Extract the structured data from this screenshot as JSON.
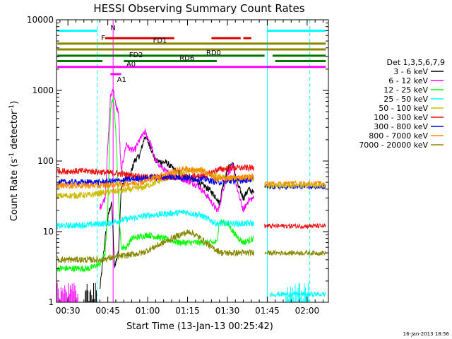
{
  "chart_data": {
    "type": "line",
    "title": "HESSI Observing Summary Count Rates",
    "xlabel": "Start Time (13-Jan-13 00:25:42)",
    "ylabel": "Count Rate (s",
    "ylabel_sup1": "-1",
    "ylabel_mid": " detector",
    "ylabel_sup2": "-1",
    "ylabel_end": ")",
    "y_scale": "log",
    "ylim": [
      1,
      10000
    ],
    "xlim_minutes": [
      25.7,
      128
    ],
    "x_ticks": [
      {
        "label": "00:30",
        "min": 30
      },
      {
        "label": "00:45",
        "min": 45
      },
      {
        "label": "01:00",
        "min": 60
      },
      {
        "label": "01:15",
        "min": 75
      },
      {
        "label": "01:30",
        "min": 90
      },
      {
        "label": "01:45",
        "min": 105
      },
      {
        "label": "02:00",
        "min": 120
      }
    ],
    "y_ticks": [
      {
        "label": "1",
        "v": 1
      },
      {
        "label": "10",
        "v": 10
      },
      {
        "label": "100",
        "v": 100
      },
      {
        "label": "1000",
        "v": 1000
      },
      {
        "label": "10000",
        "v": 10000
      }
    ],
    "legend_title": "Det 1,3,5,6,7,9",
    "legend_position": "right",
    "timestamp": "16-Jan-2013 18:56",
    "series": [
      {
        "name": "3 - 6 keV",
        "color": "#000000",
        "points": [
          [
            42,
            1.5
          ],
          [
            44,
            8
          ],
          [
            45.5,
            20
          ],
          [
            46.5,
            25
          ],
          [
            47.5,
            3.2
          ],
          [
            49,
            5
          ],
          [
            50,
            40
          ],
          [
            52,
            60
          ],
          [
            53,
            55
          ],
          [
            55,
            100
          ],
          [
            57,
            120
          ],
          [
            59,
            230
          ],
          [
            61,
            160
          ],
          [
            63,
            100
          ],
          [
            67,
            95
          ],
          [
            71,
            70
          ],
          [
            75,
            60
          ],
          [
            79,
            50
          ],
          [
            83,
            40
          ],
          [
            86,
            30
          ],
          [
            87,
            25
          ],
          [
            88,
            40
          ],
          [
            90,
            75
          ],
          [
            92,
            95
          ],
          [
            94,
            45
          ],
          [
            96,
            30
          ],
          [
            98,
            40
          ],
          [
            100,
            35
          ]
        ]
      },
      {
        "name": "6 - 12 keV",
        "color": "#ff00ff",
        "points": [
          [
            42,
            22
          ],
          [
            44,
            30
          ],
          [
            46,
            800
          ],
          [
            47,
            1100
          ],
          [
            48,
            600
          ],
          [
            49,
            500
          ],
          [
            50,
            70
          ],
          [
            52,
            180
          ],
          [
            53,
            150
          ],
          [
            55,
            140
          ],
          [
            57,
            200
          ],
          [
            59,
            260
          ],
          [
            61,
            180
          ],
          [
            63,
            100
          ],
          [
            67,
            70
          ],
          [
            71,
            60
          ],
          [
            75,
            52
          ],
          [
            79,
            45
          ],
          [
            83,
            30
          ],
          [
            86,
            20
          ],
          [
            87,
            22
          ],
          [
            88,
            35
          ],
          [
            90,
            65
          ],
          [
            92,
            85
          ],
          [
            94,
            35
          ],
          [
            96,
            20
          ],
          [
            98,
            28
          ],
          [
            100,
            30
          ]
        ]
      },
      {
        "name": "12 - 25 keV",
        "color": "#00ff00",
        "points": [
          [
            26,
            3
          ],
          [
            38,
            3
          ],
          [
            42,
            3.5
          ],
          [
            44,
            5
          ],
          [
            45,
            20
          ],
          [
            46,
            550
          ],
          [
            47,
            800
          ],
          [
            48,
            300
          ],
          [
            49,
            30
          ],
          [
            50,
            6
          ],
          [
            52,
            6
          ],
          [
            54,
            8
          ],
          [
            60,
            9
          ],
          [
            66,
            8
          ],
          [
            72,
            7
          ],
          [
            78,
            7
          ],
          [
            83,
            7
          ],
          [
            86,
            7
          ],
          [
            87,
            14
          ],
          [
            90,
            13
          ],
          [
            93,
            9
          ],
          [
            96,
            7
          ],
          [
            100,
            8
          ]
        ]
      },
      {
        "name": "25 - 50 keV",
        "color": "#00ffff",
        "points": [
          [
            26,
            12
          ],
          [
            38,
            12.5
          ],
          [
            42,
            13
          ],
          [
            45,
            13
          ],
          [
            48,
            14
          ],
          [
            52,
            15
          ],
          [
            60,
            17
          ],
          [
            68,
            18
          ],
          [
            74,
            19
          ],
          [
            80,
            17
          ],
          [
            86,
            13
          ],
          [
            92,
            13
          ],
          [
            100,
            13
          ]
        ]
      },
      {
        "name": "50 - 100 keV",
        "color": "#ccbb00",
        "points": [
          [
            26,
            32
          ],
          [
            38,
            33
          ],
          [
            42,
            35
          ],
          [
            50,
            38
          ],
          [
            58,
            42
          ],
          [
            66,
            55
          ],
          [
            74,
            70
          ],
          [
            80,
            75
          ],
          [
            86,
            60
          ],
          [
            92,
            55
          ],
          [
            100,
            55
          ]
        ]
      },
      {
        "name": "100 - 300 keV",
        "color": "#ee1111",
        "points": [
          [
            26,
            72
          ],
          [
            38,
            72
          ],
          [
            42,
            70
          ],
          [
            50,
            66
          ],
          [
            58,
            60
          ],
          [
            66,
            58
          ],
          [
            74,
            60
          ],
          [
            82,
            62
          ],
          [
            86,
            75
          ],
          [
            92,
            80
          ],
          [
            100,
            80
          ]
        ]
      },
      {
        "name": "300 - 800 keV",
        "color": "#0000ee",
        "points": [
          [
            26,
            50
          ],
          [
            38,
            50
          ],
          [
            42,
            50
          ],
          [
            50,
            53
          ],
          [
            58,
            57
          ],
          [
            66,
            60
          ],
          [
            74,
            58
          ],
          [
            82,
            55
          ],
          [
            86,
            50
          ],
          [
            92,
            52
          ],
          [
            100,
            55
          ]
        ]
      },
      {
        "name": "800 - 7000 keV",
        "color": "#ff8800",
        "points": [
          [
            26,
            45
          ],
          [
            38,
            45
          ],
          [
            42,
            45
          ],
          [
            50,
            47
          ],
          [
            58,
            50
          ],
          [
            66,
            65
          ],
          [
            74,
            78
          ],
          [
            82,
            70
          ],
          [
            86,
            55
          ],
          [
            92,
            58
          ],
          [
            100,
            60
          ]
        ]
      },
      {
        "name": "7000 - 20000 keV",
        "color": "#888800",
        "points": [
          [
            26,
            4
          ],
          [
            38,
            4
          ],
          [
            42,
            4
          ],
          [
            50,
            4.5
          ],
          [
            58,
            5
          ],
          [
            66,
            7
          ],
          [
            72,
            9
          ],
          [
            76,
            10
          ],
          [
            80,
            8
          ],
          [
            84,
            6
          ],
          [
            88,
            5
          ],
          [
            96,
            5
          ],
          [
            100,
            5
          ]
        ]
      }
    ],
    "segments_after": [
      {
        "color": "#00ffff",
        "min": 106,
        "max": 127,
        "v": 1.3
      },
      {
        "color": "#888800",
        "min": 104,
        "max": 127,
        "v": 5
      },
      {
        "color": "#ee1111",
        "min": 104,
        "max": 127,
        "v": 12
      },
      {
        "color": "#0000ee",
        "min": 104,
        "max": 127,
        "v": 43
      },
      {
        "color": "#ff8800",
        "min": 104,
        "max": 127,
        "v": 48
      },
      {
        "color": "#ccbb00",
        "min": 104,
        "max": 127,
        "v": 45
      }
    ],
    "flag_bars": [
      {
        "label": "N",
        "color": "#00ffff",
        "segments": [
          [
            26,
            41
          ],
          [
            105,
            127
          ]
        ],
        "v": 7000
      },
      {
        "label": "F",
        "color": "#dd0000",
        "segments": [
          [
            44,
            70
          ],
          [
            84,
            95
          ],
          [
            96,
            99
          ]
        ],
        "v": 5500
      },
      {
        "label": "FD1",
        "color": "#888800",
        "segments": [
          [
            26,
            127
          ]
        ],
        "v": 4600
      },
      {
        "label": "FD2",
        "color": "#888800",
        "segments": [
          [
            26,
            127
          ]
        ],
        "v": 3800
      },
      {
        "label": "RD0",
        "color": "#007700",
        "segments": [
          [
            26,
            85
          ],
          [
            85,
            104
          ],
          [
            107,
            127
          ]
        ],
        "v": 3100
      },
      {
        "label": "RD6",
        "color": "#007700",
        "segments": [
          [
            26,
            43
          ],
          [
            51,
            86
          ],
          [
            108,
            127
          ]
        ],
        "v": 2600
      },
      {
        "label": "A0",
        "color": "#ff00ff",
        "segments": [
          [
            26,
            127
          ]
        ],
        "v": 2150
      },
      {
        "label": "A1",
        "color": "#ff00ff",
        "segments": [
          [
            46,
            50
          ]
        ],
        "v": 1700
      }
    ],
    "vlines": [
      {
        "color": "#00ffff",
        "min": 41,
        "dash": true
      },
      {
        "color": "#ff00ff",
        "min": 47,
        "dash": false
      },
      {
        "color": "#00ffff",
        "min": 105,
        "dash": false
      },
      {
        "color": "#00ffff",
        "min": 121,
        "dash": true
      }
    ]
  }
}
